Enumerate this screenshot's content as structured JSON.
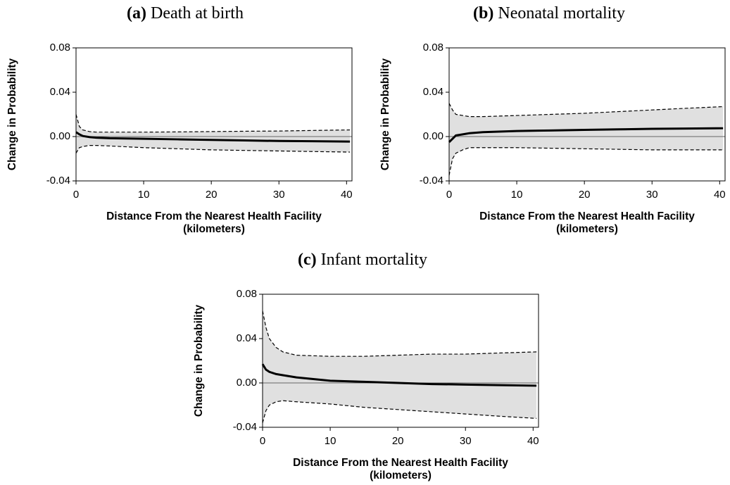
{
  "chart_data": [
    {
      "type": "line",
      "label": "(a)",
      "title": "Death at birth",
      "xlabel": [
        "Distance From the Nearest Health Facility",
        "(kilometers)"
      ],
      "ylabel": "Change in Probability",
      "x": [
        0,
        0.5,
        1,
        2,
        3,
        5,
        10,
        15,
        20,
        25,
        30,
        35,
        40.5
      ],
      "series": [
        {
          "color": "#000000",
          "dashed": false,
          "values": [
            0.004,
            0.002,
            0.0005,
            -0.0005,
            -0.001,
            -0.0015,
            -0.002,
            -0.0025,
            -0.003,
            -0.0035,
            -0.004,
            -0.0042,
            -0.0045
          ]
        },
        {
          "color": "#000000",
          "dashed": true,
          "values": [
            0.02,
            0.009,
            0.006,
            0.0045,
            0.004,
            0.004,
            0.004,
            0.0042,
            0.0045,
            0.0048,
            0.005,
            0.0055,
            0.006
          ]
        },
        {
          "color": "#000000",
          "dashed": true,
          "values": [
            -0.015,
            -0.01,
            -0.009,
            -0.008,
            -0.008,
            -0.0085,
            -0.01,
            -0.011,
            -0.012,
            -0.0125,
            -0.013,
            -0.0135,
            -0.014
          ]
        }
      ],
      "band_color": "#e0e0e0",
      "zero_line": true,
      "xlim": [
        0,
        40.8
      ],
      "xticks": [
        0,
        10,
        20,
        30,
        40
      ],
      "ylim": [
        -0.04,
        0.08
      ],
      "yticks": [
        -0.04,
        {
          "value": 0,
          "label": "0.00"
        },
        0.04,
        0.08
      ]
    },
    {
      "type": "line",
      "label": "(b)",
      "title": "Neonatal mortality",
      "xlabel": [
        "Distance From the Nearest Health Facility",
        "(kilometers)"
      ],
      "ylabel": "Change in Probability",
      "x": [
        0,
        0.5,
        1,
        2,
        3,
        5,
        10,
        15,
        20,
        25,
        30,
        35,
        40.5
      ],
      "series": [
        {
          "color": "#000000",
          "dashed": false,
          "values": [
            -0.005,
            -0.002,
            0.001,
            0.002,
            0.003,
            0.004,
            0.005,
            0.0055,
            0.006,
            0.0065,
            0.007,
            0.0072,
            0.0075
          ]
        },
        {
          "color": "#000000",
          "dashed": true,
          "values": [
            0.03,
            0.024,
            0.02,
            0.019,
            0.018,
            0.018,
            0.019,
            0.02,
            0.021,
            0.0225,
            0.024,
            0.0255,
            0.027
          ]
        },
        {
          "color": "#000000",
          "dashed": true,
          "values": [
            -0.035,
            -0.02,
            -0.015,
            -0.012,
            -0.01,
            -0.01,
            -0.01,
            -0.0105,
            -0.011,
            -0.0115,
            -0.012,
            -0.012,
            -0.012
          ]
        }
      ],
      "band_color": "#e0e0e0",
      "zero_line": true,
      "xlim": [
        0,
        40.8
      ],
      "xticks": [
        0,
        10,
        20,
        30,
        40
      ],
      "ylim": [
        -0.04,
        0.08
      ],
      "yticks": [
        -0.04,
        {
          "value": 0,
          "label": "0.00"
        },
        0.04,
        0.08
      ]
    },
    {
      "type": "line",
      "label": "(c)",
      "title": "Infant mortality",
      "xlabel": [
        "Distance From the Nearest Health Facility",
        "(kilometers)"
      ],
      "ylabel": "Change in Probability",
      "x": [
        0,
        0.5,
        1,
        2,
        3,
        5,
        10,
        15,
        20,
        25,
        30,
        35,
        40.5
      ],
      "series": [
        {
          "color": "#000000",
          "dashed": false,
          "values": [
            0.017,
            0.012,
            0.01,
            0.008,
            0.007,
            0.005,
            0.002,
            0.001,
            0,
            -0.001,
            -0.0015,
            -0.002,
            -0.0025
          ]
        },
        {
          "color": "#000000",
          "dashed": true,
          "values": [
            0.065,
            0.05,
            0.04,
            0.032,
            0.028,
            0.025,
            0.024,
            0.024,
            0.025,
            0.026,
            0.026,
            0.027,
            0.028
          ]
        },
        {
          "color": "#000000",
          "dashed": true,
          "values": [
            -0.036,
            -0.025,
            -0.02,
            -0.017,
            -0.016,
            -0.017,
            -0.019,
            -0.022,
            -0.024,
            -0.026,
            -0.028,
            -0.03,
            -0.032
          ]
        }
      ],
      "band_color": "#e0e0e0",
      "zero_line": true,
      "xlim": [
        0,
        40.8
      ],
      "xticks": [
        0,
        10,
        20,
        30,
        40
      ],
      "ylim": [
        -0.04,
        0.08
      ],
      "yticks": [
        -0.04,
        {
          "value": 0,
          "label": "0.00"
        },
        0.04,
        0.08
      ]
    }
  ]
}
